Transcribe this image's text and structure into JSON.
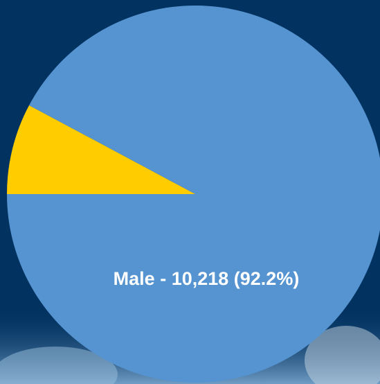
{
  "chart_data": {
    "type": "pie",
    "categories": [
      "Male",
      null
    ],
    "values": [
      92.2,
      7.8
    ],
    "value_labels": [
      "Male - 10,218 (92.2%)",
      null
    ],
    "colors": [
      "#5594d0",
      "#ffcc00"
    ]
  }
}
